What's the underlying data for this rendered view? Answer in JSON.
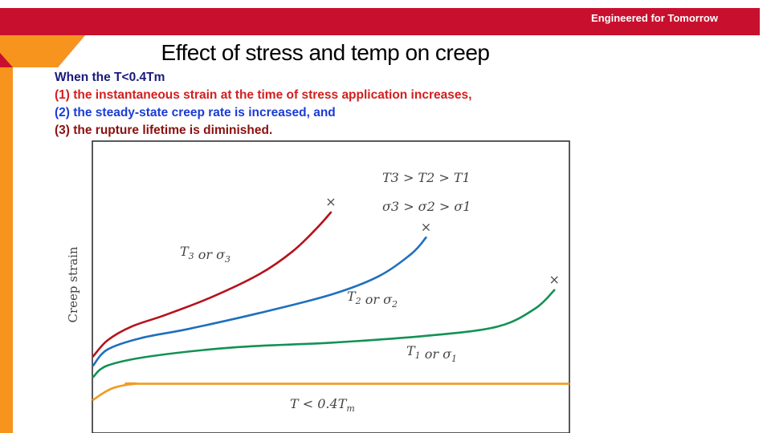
{
  "header": {
    "tagline": "Engineered for Tomorrow"
  },
  "slide": {
    "title": "Effect of stress and temp on creep",
    "points": [
      "When the T<0.4Tm",
      "(1) the instantaneous strain at the time of stress application increases,",
      "(2) the steady-state creep rate is increased, and",
      "(3) the rupture lifetime is diminished."
    ]
  },
  "colors": {
    "header_red": "#c8102e",
    "sidebar_orange": "#f7941d",
    "series_t3": "#b5121b",
    "series_t2": "#1f6fbd",
    "series_t1": "#139155",
    "series_low": "#f39a1e"
  },
  "chart_data": {
    "type": "line",
    "xlabel": "",
    "ylabel": "Creep strain",
    "axis_ticks": false,
    "grid": false,
    "legend": "inline labels",
    "annotations": [
      "T3 > T2 > T1",
      "σ3 > σ2 > σ1"
    ],
    "rupture_marker": "×",
    "xlim": [
      0,
      10
    ],
    "ylim": [
      0,
      10
    ],
    "series": [
      {
        "name": "T3 or σ3",
        "sub_letter": "3",
        "color": "#b5121b",
        "ruptures": true,
        "x": [
          0,
          0.3,
          0.8,
          1.5,
          2.5,
          3.5,
          4.2,
          4.7,
          5.0
        ],
        "y": [
          2.3,
          3.0,
          3.6,
          4.1,
          4.9,
          5.9,
          6.9,
          7.9,
          8.6
        ]
      },
      {
        "name": "T2 or σ2",
        "sub_letter": "2",
        "color": "#1f6fbd",
        "ruptures": true,
        "x": [
          0,
          0.3,
          1.0,
          2.0,
          3.5,
          5.0,
          6.0,
          6.7,
          7.0
        ],
        "y": [
          1.9,
          2.6,
          3.1,
          3.5,
          4.2,
          5.0,
          5.8,
          6.8,
          7.5
        ]
      },
      {
        "name": "T1 or σ1",
        "sub_letter": "1",
        "color": "#139155",
        "ruptures": true,
        "x": [
          0,
          0.3,
          1.2,
          3.0,
          5.0,
          7.0,
          8.5,
          9.3,
          9.7
        ],
        "y": [
          1.4,
          1.9,
          2.3,
          2.7,
          2.9,
          3.2,
          3.6,
          4.4,
          5.2
        ]
      },
      {
        "name": "T < 0.4Tm",
        "sub_letter": "m",
        "color": "#f39a1e",
        "ruptures": false,
        "x": [
          0,
          0.4,
          0.9,
          1.5,
          10
        ],
        "y": [
          0.4,
          0.9,
          1.1,
          1.1,
          1.1
        ]
      }
    ]
  }
}
